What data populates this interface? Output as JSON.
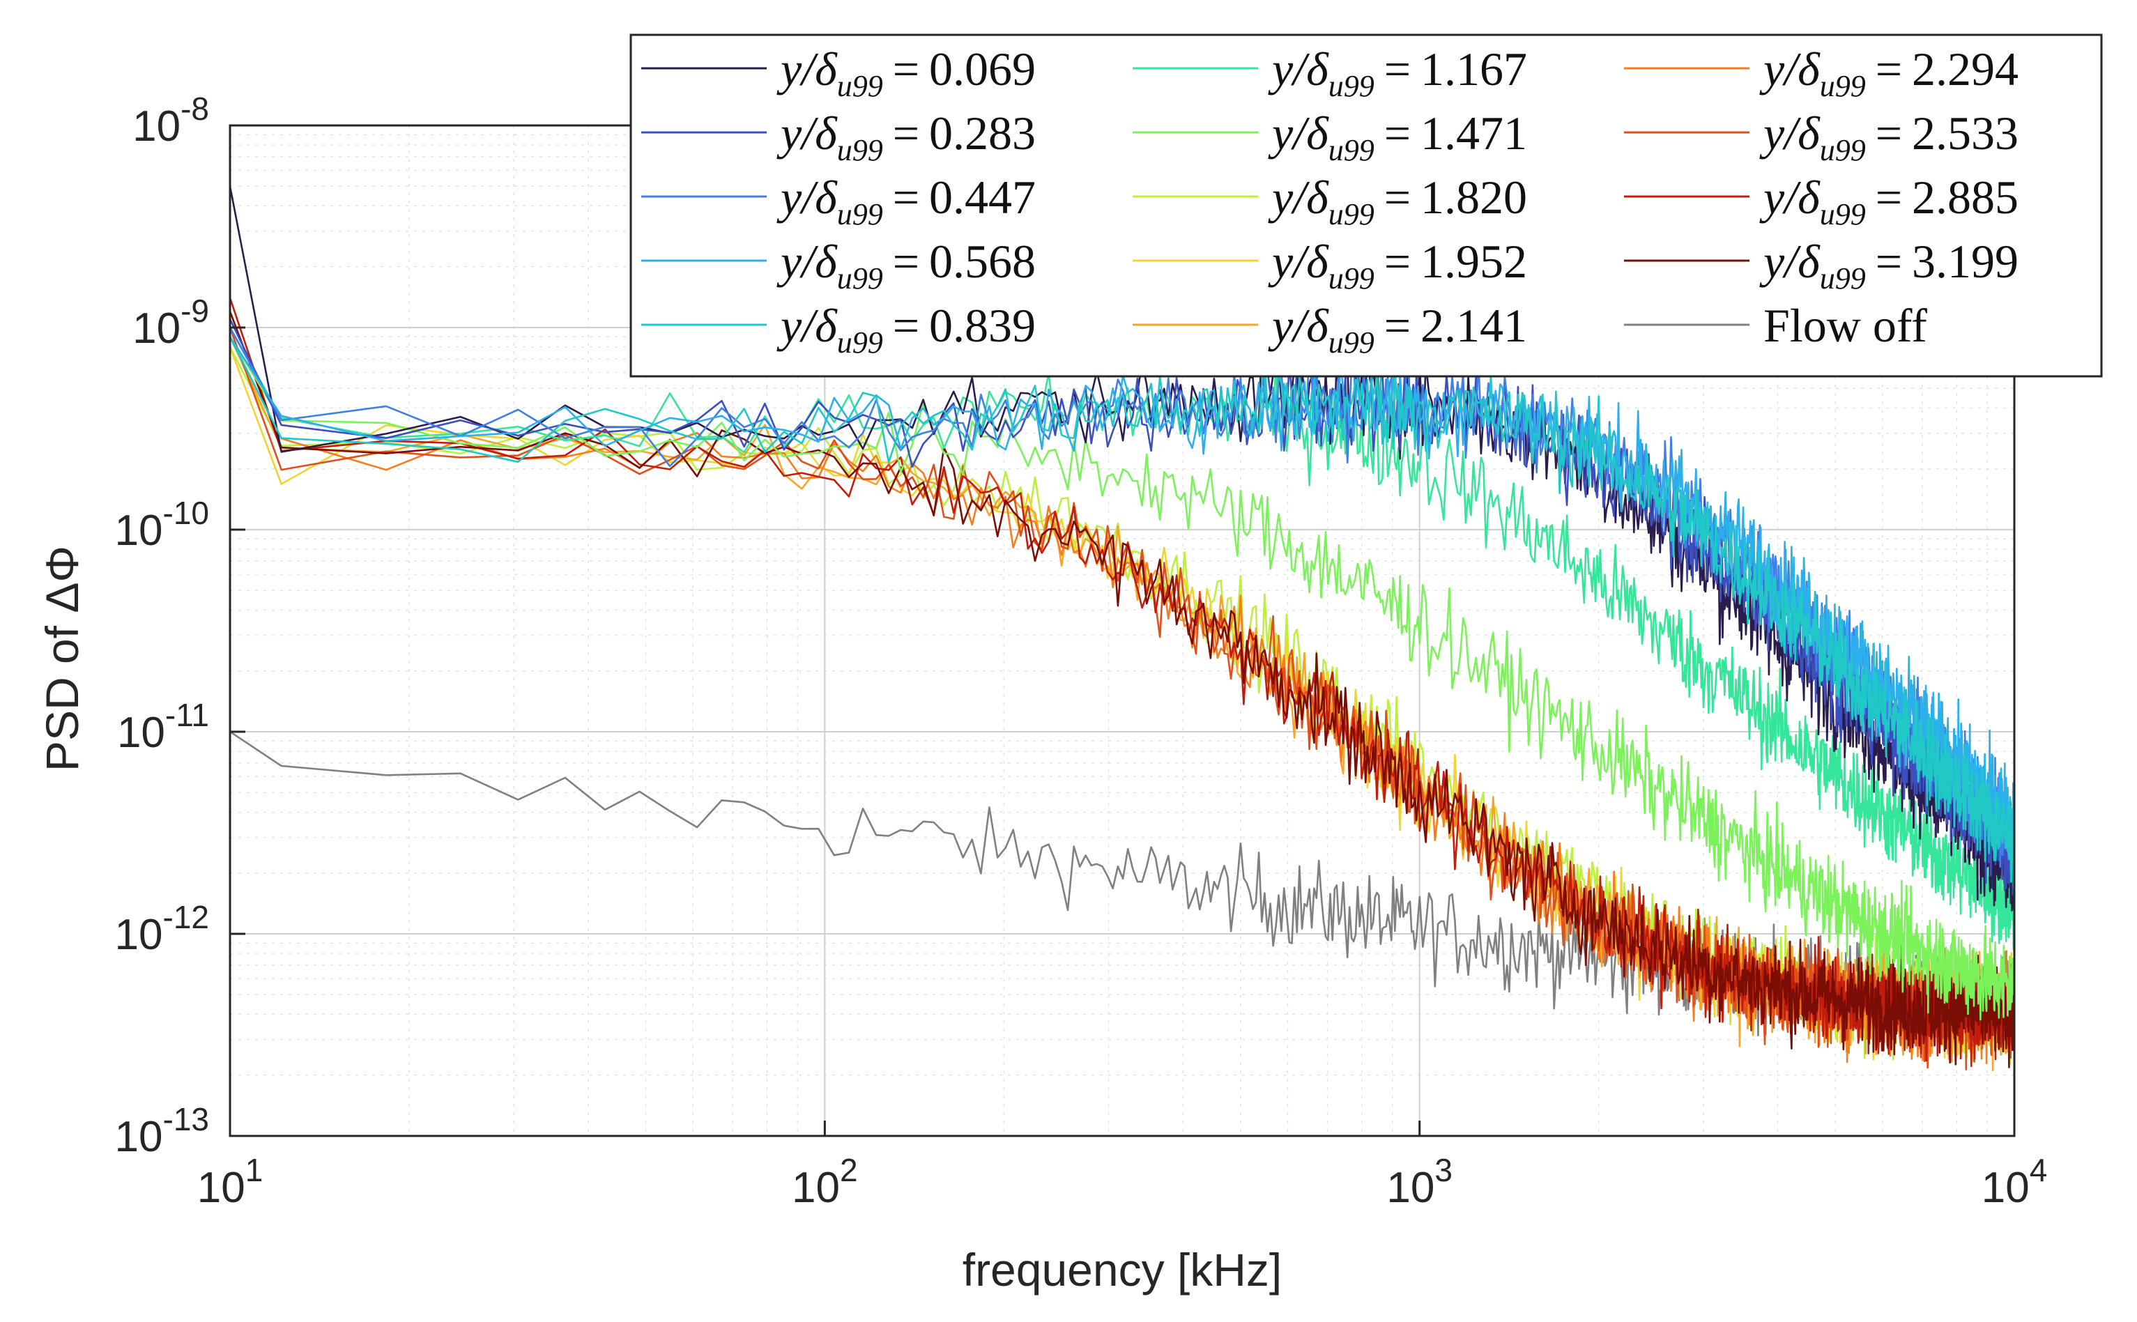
{
  "chart_data": {
    "type": "line",
    "xscale": "log",
    "yscale": "log",
    "xlabel": "frequency [kHz]",
    "ylabel": "PSD of ΔΦ",
    "xlim": [
      10,
      10000
    ],
    "ylim": [
      1e-13,
      1e-08
    ],
    "grid": true,
    "legend_position": "top-right",
    "x_ticks": [
      {
        "base": "10",
        "exp": "1"
      },
      {
        "base": "10",
        "exp": "2"
      },
      {
        "base": "10",
        "exp": "3"
      },
      {
        "base": "10",
        "exp": "4"
      }
    ],
    "y_ticks": [
      {
        "base": "10",
        "exp": "-13"
      },
      {
        "base": "10",
        "exp": "-12"
      },
      {
        "base": "10",
        "exp": "-11"
      },
      {
        "base": "10",
        "exp": "-10"
      },
      {
        "base": "10",
        "exp": "-9"
      },
      {
        "base": "10",
        "exp": "-8"
      }
    ],
    "legend_prefix": "y/δ",
    "legend_subscript": "u99",
    "legend_eq": "=",
    "series": [
      {
        "name": "0.069",
        "color": "#2a1d4e",
        "group": "near",
        "low": 3.2e-10,
        "hump": 5.5e-10,
        "fc": 1600,
        "slope": 3.2,
        "floor": 4e-13,
        "start": 5e-09
      },
      {
        "name": "0.283",
        "color": "#3b4fc0",
        "group": "near",
        "low": 3e-10,
        "hump": 5e-10,
        "fc": 1800,
        "slope": 3.2,
        "floor": 4e-13,
        "start": 1.1e-09
      },
      {
        "name": "0.447",
        "color": "#3f7fe6",
        "group": "near",
        "low": 3e-10,
        "hump": 5e-10,
        "fc": 2000,
        "slope": 3.2,
        "floor": 4e-13,
        "start": 1e-09
      },
      {
        "name": "0.568",
        "color": "#2bb0ec",
        "group": "near",
        "low": 3e-10,
        "hump": 5e-10,
        "fc": 2100,
        "slope": 3.2,
        "floor": 4e-13,
        "start": 9e-10
      },
      {
        "name": "0.839",
        "color": "#20c9c5",
        "group": "near",
        "low": 3e-10,
        "hump": 5e-10,
        "fc": 1900,
        "slope": 3.2,
        "floor": 4e-13,
        "start": 9e-10
      },
      {
        "name": "1.167",
        "color": "#35e59a",
        "group": "mid",
        "low": 3e-10,
        "hump": 5e-10,
        "fc": 900,
        "slope": 2.6,
        "floor": 4e-13,
        "start": 1e-09
      },
      {
        "name": "1.471",
        "color": "#7cf25a",
        "group": "mid",
        "low": 2.8e-10,
        "hump": 3.2e-10,
        "fc": 380,
        "slope": 2.2,
        "floor": 3e-13,
        "start": 9e-10
      },
      {
        "name": "1.820",
        "color": "#bdf03a",
        "group": "far",
        "low": 2.5e-10,
        "hump": 2.2e-10,
        "fc": 260,
        "slope": 2.6,
        "floor": 4e-13,
        "start": 8e-10
      },
      {
        "name": "1.952",
        "color": "#f0d531",
        "group": "far",
        "low": 2.5e-10,
        "hump": 2e-10,
        "fc": 240,
        "slope": 2.6,
        "floor": 4e-13,
        "start": 8e-10
      },
      {
        "name": "2.141",
        "color": "#f5a62a",
        "group": "far",
        "low": 2.5e-10,
        "hump": 2e-10,
        "fc": 240,
        "slope": 2.6,
        "floor": 4e-13,
        "start": 9e-10
      },
      {
        "name": "2.294",
        "color": "#f57d1e",
        "group": "far",
        "low": 2.5e-10,
        "hump": 2e-10,
        "fc": 240,
        "slope": 2.6,
        "floor": 4e-13,
        "start": 9e-10
      },
      {
        "name": "2.533",
        "color": "#e0501a",
        "group": "far",
        "low": 2.3e-10,
        "hump": 2e-10,
        "fc": 240,
        "slope": 2.6,
        "floor": 4e-13,
        "start": 1e-09
      },
      {
        "name": "2.885",
        "color": "#c21d0c",
        "group": "far",
        "low": 2.5e-10,
        "hump": 2e-10,
        "fc": 240,
        "slope": 2.6,
        "floor": 4e-13,
        "start": 1.4e-09
      },
      {
        "name": "3.199",
        "color": "#7a0d05",
        "group": "far",
        "low": 2.5e-10,
        "hump": 2e-10,
        "fc": 240,
        "slope": 2.6,
        "floor": 4e-13,
        "start": 1.2e-09
      },
      {
        "name": "Flow off",
        "color": "#808080",
        "group": "off",
        "low": 6e-12,
        "hump": 5e-12,
        "fc": 110,
        "slope": 0.9,
        "floor": 3.5e-13,
        "start": 1e-11
      }
    ]
  }
}
